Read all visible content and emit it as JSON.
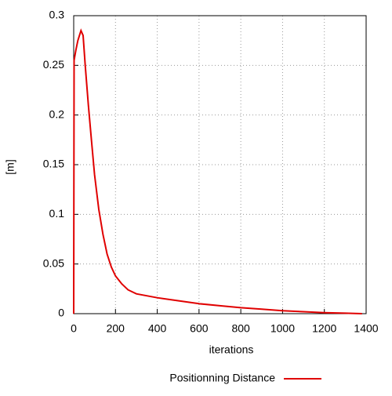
{
  "chart_data": {
    "type": "line",
    "x_label": "iterations",
    "y_label": "[m]",
    "x": [
      0,
      2,
      10,
      20,
      35,
      45,
      55,
      70,
      85,
      100,
      120,
      140,
      160,
      180,
      200,
      230,
      260,
      300,
      400,
      500,
      600,
      700,
      800,
      900,
      1000,
      1100,
      1200,
      1300,
      1380
    ],
    "series": [
      {
        "name": "Positionning Distance",
        "color": "#e00000",
        "values": [
          0,
          0.255,
          0.265,
          0.275,
          0.285,
          0.28,
          0.25,
          0.21,
          0.175,
          0.14,
          0.105,
          0.08,
          0.06,
          0.047,
          0.038,
          0.03,
          0.024,
          0.02,
          0.016,
          0.013,
          0.01,
          0.008,
          0.006,
          0.0045,
          0.003,
          0.002,
          0.001,
          0.0005,
          0
        ]
      }
    ],
    "xlim": [
      0,
      1400
    ],
    "xticks": [
      0,
      200,
      400,
      600,
      800,
      1000,
      1200,
      1400
    ],
    "ylim": [
      0,
      0.3
    ],
    "yticks": [
      0,
      0.05,
      0.1,
      0.15,
      0.2,
      0.25,
      0.3
    ],
    "grid": true
  }
}
